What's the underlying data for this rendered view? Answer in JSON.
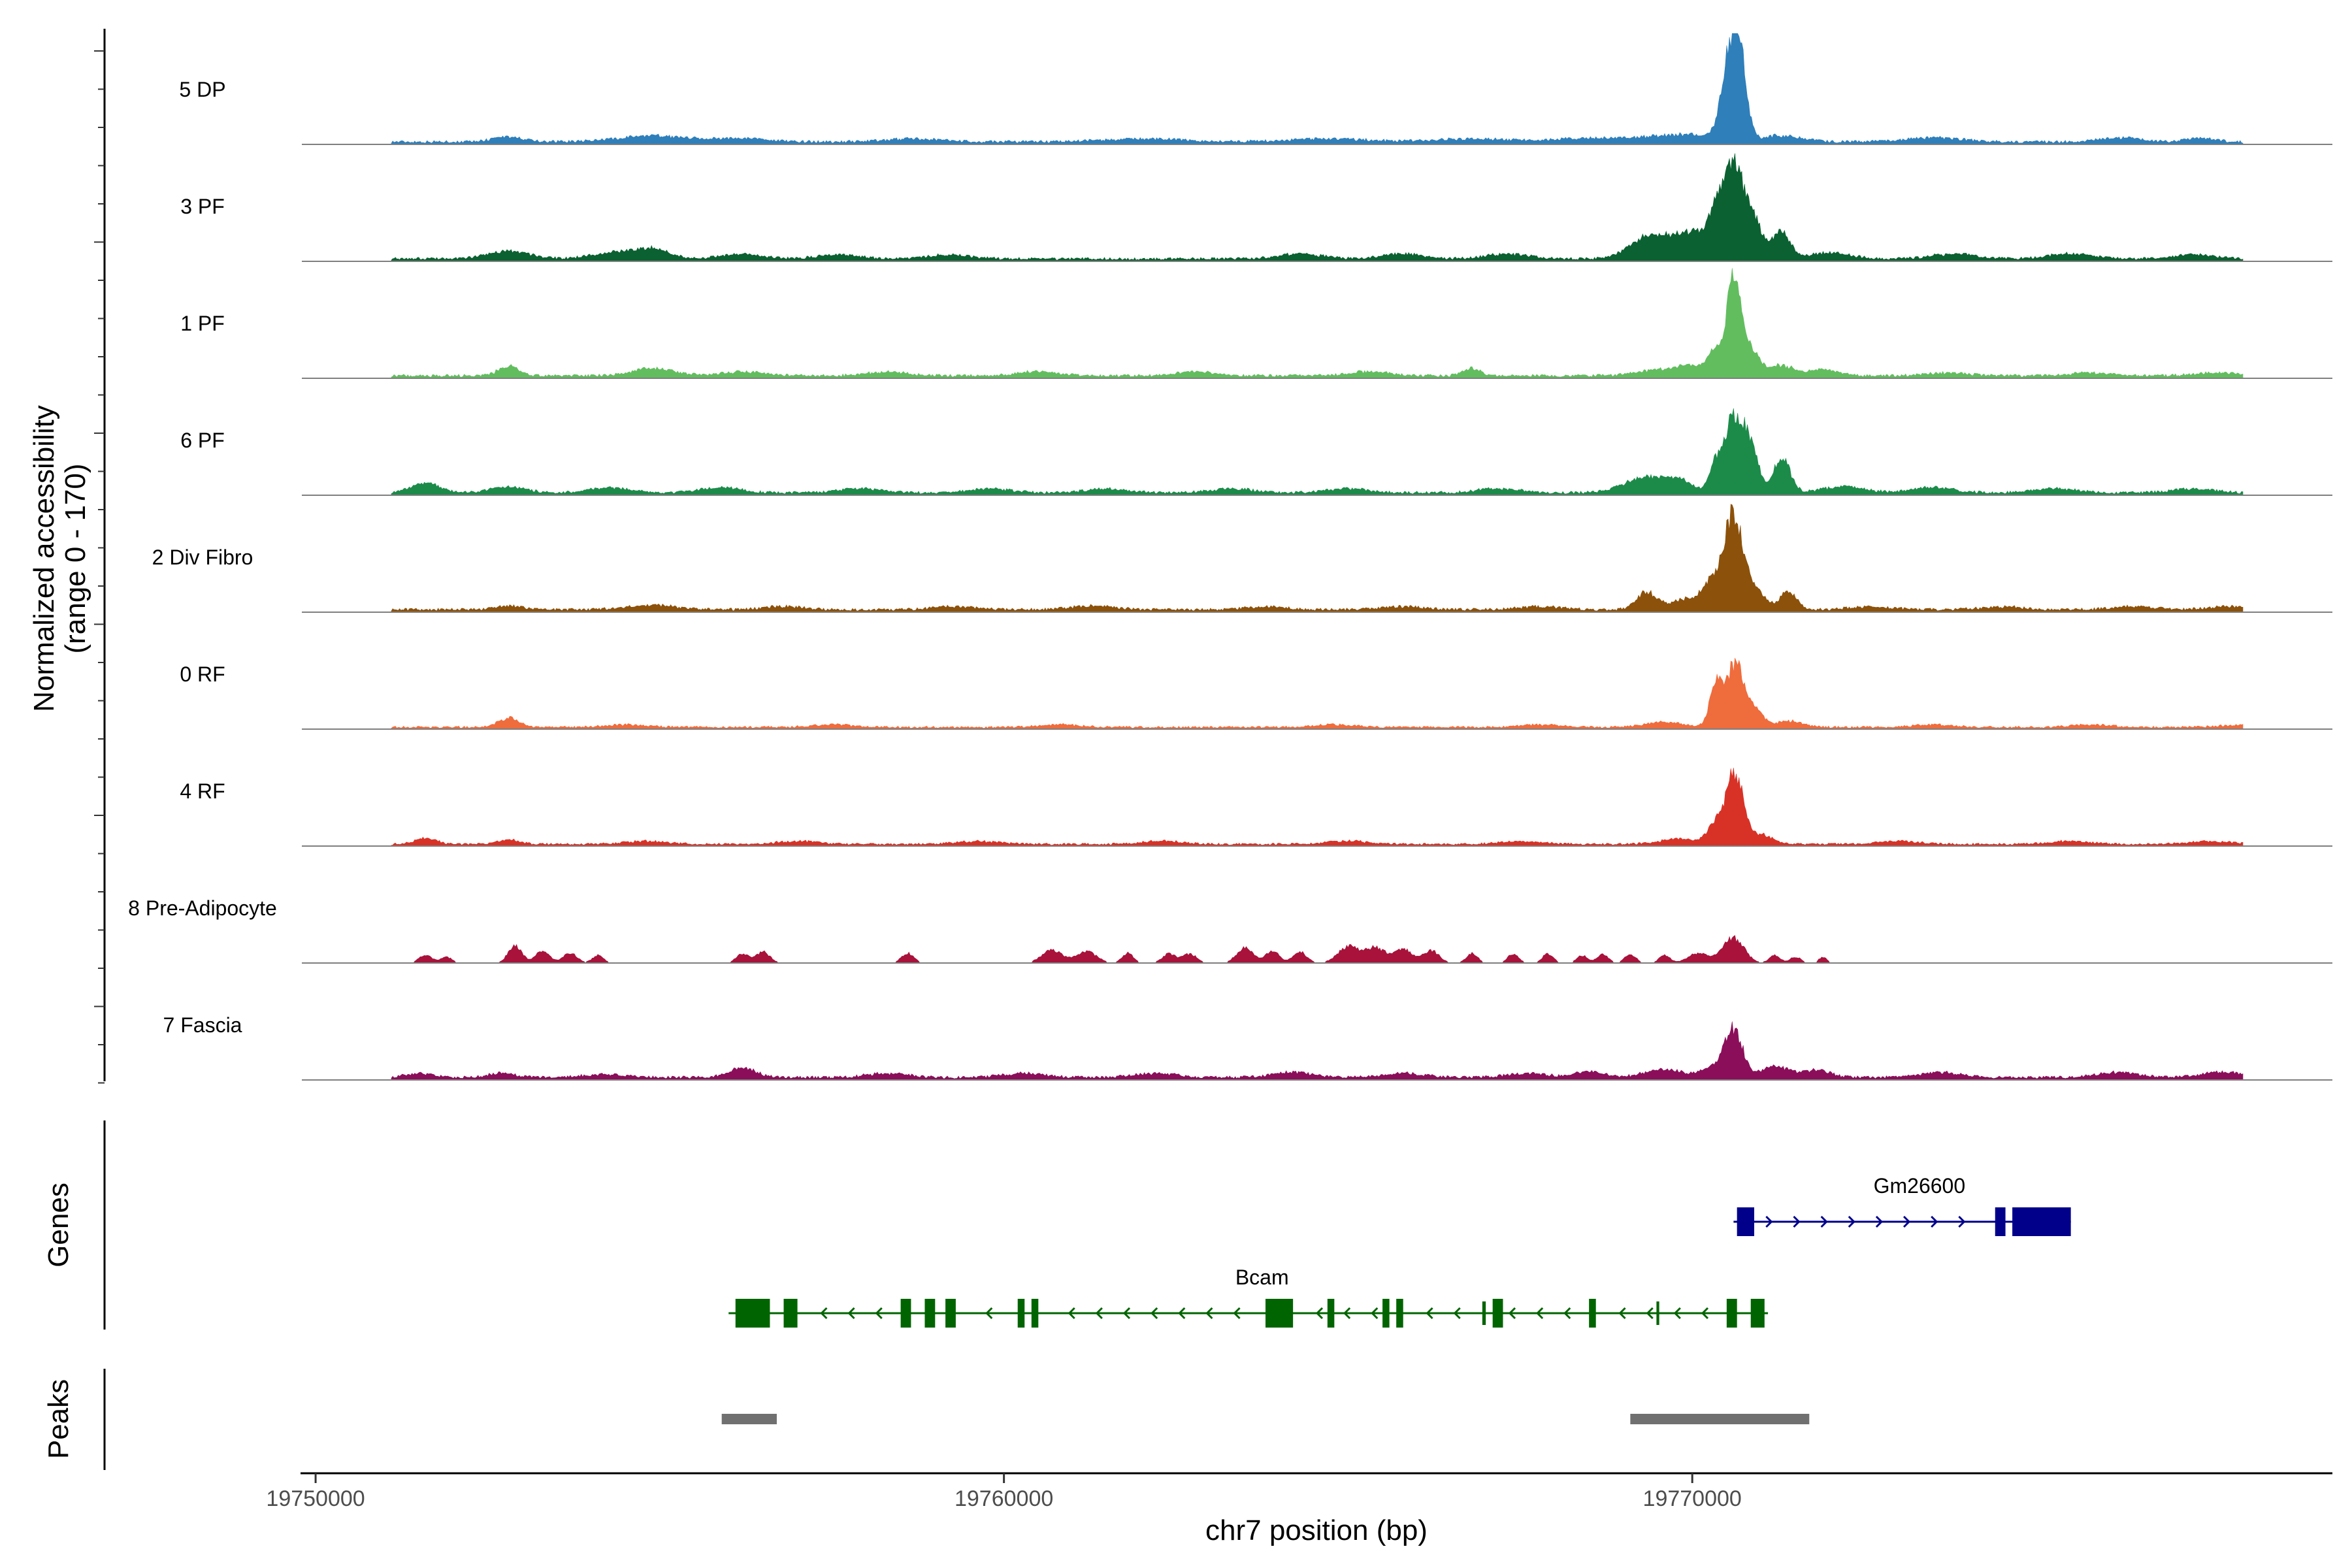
{
  "chart_data": {
    "type": "area",
    "title": "",
    "xlabel": "chr7 position (bp)",
    "ylabel": [
      "Normalized accessibility",
      "(range 0 - 170)"
    ],
    "ylim": [
      0,
      170
    ],
    "xlim": [
      19749800,
      19779300
    ],
    "x_ticks": [
      19750000,
      19760000,
      19770000
    ],
    "x_tick_labels": [
      "19750000",
      "19760000",
      "19770000"
    ],
    "tracks": [
      {
        "name": "5 DP",
        "color": "#2e7fba",
        "baseline": 8,
        "peaks": [
          [
            19752800,
            220,
            10
          ],
          [
            19754900,
            500,
            12
          ],
          [
            19756200,
            400,
            7
          ],
          [
            19758700,
            400,
            6
          ],
          [
            19762000,
            600,
            6
          ],
          [
            19764700,
            600,
            6
          ],
          [
            19766800,
            500,
            6
          ],
          [
            19768600,
            600,
            8
          ],
          [
            19769900,
            450,
            14
          ],
          [
            19770550,
            120,
            165
          ],
          [
            19770700,
            100,
            120
          ],
          [
            19771300,
            300,
            12
          ],
          [
            19773500,
            400,
            8
          ],
          [
            19776200,
            300,
            8
          ],
          [
            19777400,
            200,
            8
          ]
        ]
      },
      {
        "name": "3 PF",
        "color": "#0b6131",
        "baseline": 8,
        "peaks": [
          [
            19752800,
            300,
            15
          ],
          [
            19754300,
            300,
            12
          ],
          [
            19754900,
            250,
            20
          ],
          [
            19756200,
            300,
            10
          ],
          [
            19757600,
            300,
            8
          ],
          [
            19759200,
            300,
            8
          ],
          [
            19764300,
            300,
            10
          ],
          [
            19765800,
            300,
            10
          ],
          [
            19767300,
            300,
            10
          ],
          [
            19769300,
            250,
            35
          ],
          [
            19769700,
            250,
            30
          ],
          [
            19770050,
            200,
            40
          ],
          [
            19770350,
            120,
            80
          ],
          [
            19770580,
            130,
            165
          ],
          [
            19770850,
            150,
            90
          ],
          [
            19771300,
            120,
            55
          ],
          [
            19772000,
            300,
            12
          ],
          [
            19773800,
            300,
            10
          ],
          [
            19775500,
            300,
            10
          ],
          [
            19777300,
            300,
            8
          ]
        ]
      },
      {
        "name": "1 PF",
        "color": "#62bd5f",
        "baseline": 8,
        "peaks": [
          [
            19752800,
            150,
            18
          ],
          [
            19754900,
            300,
            15
          ],
          [
            19756200,
            300,
            8
          ],
          [
            19758300,
            300,
            8
          ],
          [
            19760500,
            300,
            8
          ],
          [
            19762800,
            300,
            8
          ],
          [
            19765300,
            300,
            8
          ],
          [
            19766800,
            120,
            15
          ],
          [
            19769500,
            300,
            12
          ],
          [
            19770000,
            200,
            18
          ],
          [
            19770320,
            100,
            45
          ],
          [
            19770600,
            100,
            210
          ],
          [
            19770850,
            120,
            50
          ],
          [
            19771300,
            200,
            20
          ],
          [
            19771900,
            200,
            12
          ],
          [
            19773700,
            300,
            6
          ],
          [
            19775800,
            300,
            6
          ],
          [
            19777600,
            300,
            6
          ]
        ]
      },
      {
        "name": "6 PF",
        "color": "#1c8b4a",
        "baseline": 8,
        "peaks": [
          [
            19751600,
            200,
            20
          ],
          [
            19752800,
            250,
            12
          ],
          [
            19754300,
            300,
            10
          ],
          [
            19755900,
            300,
            10
          ],
          [
            19757900,
            300,
            8
          ],
          [
            19759800,
            300,
            8
          ],
          [
            19761500,
            300,
            8
          ],
          [
            19763300,
            300,
            8
          ],
          [
            19765000,
            300,
            8
          ],
          [
            19767200,
            300,
            8
          ],
          [
            19769300,
            300,
            30
          ],
          [
            19769800,
            200,
            22
          ],
          [
            19770350,
            100,
            55
          ],
          [
            19770620,
            130,
            155
          ],
          [
            19770870,
            100,
            80
          ],
          [
            19771300,
            120,
            70
          ],
          [
            19772200,
            300,
            12
          ],
          [
            19773500,
            300,
            10
          ],
          [
            19775300,
            300,
            8
          ],
          [
            19777300,
            300,
            8
          ]
        ]
      },
      {
        "name": "2 Div Fibro",
        "color": "#8c510a",
        "baseline": 8,
        "peaks": [
          [
            19752800,
            200,
            8
          ],
          [
            19754900,
            400,
            8
          ],
          [
            19756800,
            300,
            6
          ],
          [
            19759300,
            300,
            6
          ],
          [
            19761300,
            300,
            8
          ],
          [
            19763800,
            300,
            6
          ],
          [
            19765800,
            300,
            6
          ],
          [
            19767800,
            300,
            6
          ],
          [
            19769350,
            150,
            35
          ],
          [
            19769900,
            200,
            20
          ],
          [
            19770300,
            150,
            55
          ],
          [
            19770600,
            130,
            180
          ],
          [
            19770900,
            150,
            40
          ],
          [
            19771400,
            120,
            35
          ],
          [
            19772600,
            300,
            6
          ],
          [
            19774500,
            300,
            6
          ],
          [
            19776400,
            300,
            6
          ],
          [
            19777800,
            300,
            6
          ]
        ]
      },
      {
        "name": "0 RF",
        "color": "#ef6c3d",
        "baseline": 6,
        "peaks": [
          [
            19752800,
            150,
            18
          ],
          [
            19754500,
            300,
            5
          ],
          [
            19757500,
            300,
            5
          ],
          [
            19760800,
            300,
            5
          ],
          [
            19764800,
            300,
            5
          ],
          [
            19767800,
            300,
            5
          ],
          [
            19769600,
            300,
            10
          ],
          [
            19770350,
            90,
            90
          ],
          [
            19770620,
            120,
            125
          ],
          [
            19770900,
            120,
            35
          ],
          [
            19771400,
            200,
            12
          ],
          [
            19773500,
            300,
            5
          ],
          [
            19775800,
            300,
            5
          ],
          [
            19778000,
            300,
            5
          ]
        ]
      },
      {
        "name": "4 RF",
        "color": "#d83227",
        "baseline": 6,
        "peaks": [
          [
            19751600,
            150,
            12
          ],
          [
            19752800,
            150,
            10
          ],
          [
            19754800,
            300,
            6
          ],
          [
            19757000,
            300,
            6
          ],
          [
            19759600,
            300,
            6
          ],
          [
            19762300,
            300,
            6
          ],
          [
            19765000,
            300,
            6
          ],
          [
            19767500,
            300,
            6
          ],
          [
            19769800,
            300,
            10
          ],
          [
            19770350,
            120,
            40
          ],
          [
            19770620,
            120,
            140
          ],
          [
            19771000,
            150,
            20
          ],
          [
            19773000,
            300,
            6
          ],
          [
            19775500,
            300,
            6
          ],
          [
            19777500,
            300,
            6
          ]
        ]
      },
      {
        "name": "8 Pre-Adipocyte",
        "color": "#a8123b",
        "baseline": 0,
        "peaks": [
          [
            19751600,
            100,
            15
          ],
          [
            19751900,
            80,
            12
          ],
          [
            19752900,
            100,
            35
          ],
          [
            19753300,
            100,
            25
          ],
          [
            19753700,
            100,
            20
          ],
          [
            19754100,
            80,
            15
          ],
          [
            19756200,
            90,
            18
          ],
          [
            19756500,
            100,
            22
          ],
          [
            19758600,
            90,
            20
          ],
          [
            19760700,
            150,
            25
          ],
          [
            19761200,
            150,
            22
          ],
          [
            19761800,
            80,
            20
          ],
          [
            19762400,
            100,
            18
          ],
          [
            19762700,
            100,
            18
          ],
          [
            19763500,
            120,
            30
          ],
          [
            19763900,
            100,
            25
          ],
          [
            19764300,
            100,
            22
          ],
          [
            19765000,
            150,
            32
          ],
          [
            19765400,
            150,
            30
          ],
          [
            19765800,
            120,
            28
          ],
          [
            19766200,
            120,
            25
          ],
          [
            19766800,
            80,
            20
          ],
          [
            19767400,
            80,
            18
          ],
          [
            19767900,
            80,
            18
          ],
          [
            19768400,
            80,
            15
          ],
          [
            19768700,
            80,
            18
          ],
          [
            19769100,
            80,
            18
          ],
          [
            19769600,
            80,
            15
          ],
          [
            19770100,
            150,
            20
          ],
          [
            19770600,
            150,
            50
          ],
          [
            19771200,
            80,
            15
          ],
          [
            19771500,
            80,
            12
          ],
          [
            19771900,
            60,
            12
          ]
        ]
      },
      {
        "name": "7 Fascia",
        "color": "#8b0e5a",
        "baseline": 8,
        "peaks": [
          [
            19751500,
            200,
            8
          ],
          [
            19752700,
            200,
            8
          ],
          [
            19754200,
            300,
            6
          ],
          [
            19756200,
            200,
            18
          ],
          [
            19758300,
            300,
            8
          ],
          [
            19760300,
            300,
            8
          ],
          [
            19762200,
            300,
            8
          ],
          [
            19764200,
            300,
            10
          ],
          [
            19765800,
            300,
            8
          ],
          [
            19767600,
            300,
            8
          ],
          [
            19768500,
            200,
            12
          ],
          [
            19769600,
            300,
            15
          ],
          [
            19770300,
            150,
            20
          ],
          [
            19770600,
            130,
            95
          ],
          [
            19771200,
            200,
            22
          ],
          [
            19771800,
            200,
            15
          ],
          [
            19773600,
            300,
            10
          ],
          [
            19776200,
            300,
            10
          ],
          [
            19777700,
            300,
            10
          ]
        ]
      }
    ],
    "genes": [
      {
        "name": "Gm26600",
        "color": "#00008b",
        "strand": "+",
        "start": 19770600,
        "end": 19775500,
        "exons": [
          [
            19770650,
            19770900
          ],
          [
            19774400,
            19774550
          ],
          [
            19774650,
            19775500
          ]
        ]
      },
      {
        "name": "Bcam",
        "color": "#006400",
        "strand": "-",
        "start": 19756000,
        "end": 19771100,
        "exons": [
          [
            19756100,
            19756600
          ],
          [
            19756800,
            19757000
          ],
          [
            19758500,
            19758650
          ],
          [
            19758850,
            19759000
          ],
          [
            19759150,
            19759300
          ],
          [
            19760200,
            19760300
          ],
          [
            19760400,
            19760500
          ],
          [
            19763800,
            19764200
          ],
          [
            19764700,
            19764800
          ],
          [
            19765500,
            19765600
          ],
          [
            19765700,
            19765800
          ],
          [
            19766950,
            19767000
          ],
          [
            19767100,
            19767250
          ],
          [
            19768500,
            19768600
          ],
          [
            19769480,
            19769520
          ],
          [
            19770500,
            19770650
          ],
          [
            19770850,
            19771050
          ]
        ]
      }
    ],
    "peaks": [
      {
        "start": 19755900,
        "end": 19756700
      },
      {
        "start": 19769100,
        "end": 19771700
      }
    ],
    "panel_labels": {
      "genes": "Genes",
      "peaks": "Peaks"
    }
  }
}
